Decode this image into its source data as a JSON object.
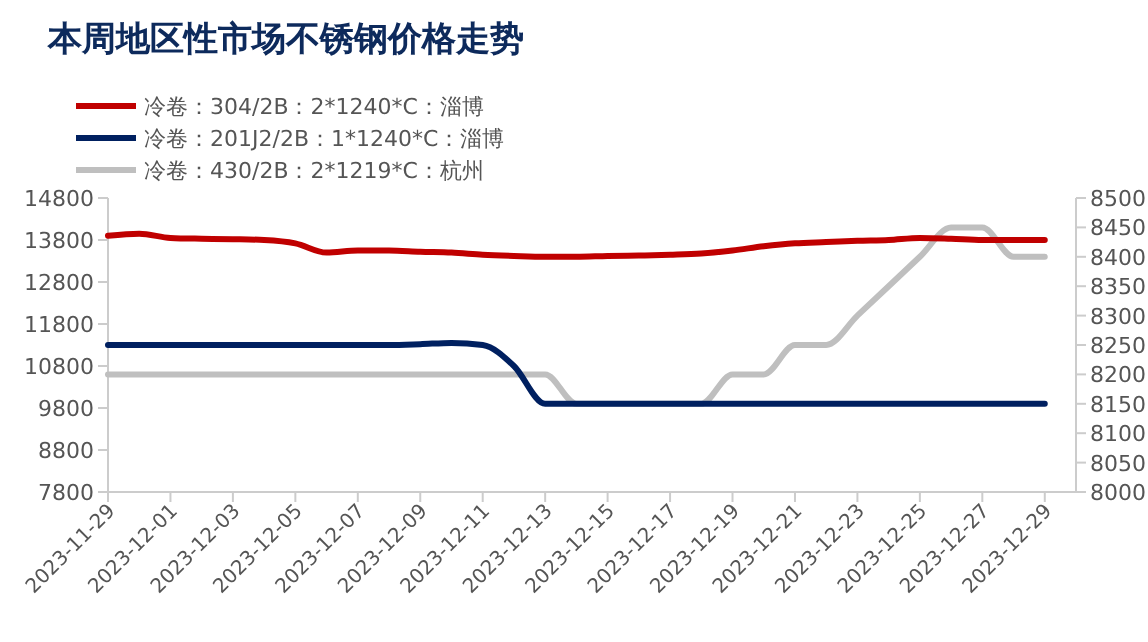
{
  "chart_data": {
    "type": "line",
    "title": "本周地区性市场不锈钢价格走势",
    "legend": "top left",
    "x": [
      "2023-11-29",
      "2023-11-30",
      "2023-12-01",
      "2023-12-02",
      "2023-12-03",
      "2023-12-04",
      "2023-12-05",
      "2023-12-06",
      "2023-12-07",
      "2023-12-08",
      "2023-12-09",
      "2023-12-10",
      "2023-12-11",
      "2023-12-12",
      "2023-12-13",
      "2023-12-14",
      "2023-12-15",
      "2023-12-16",
      "2023-12-17",
      "2023-12-18",
      "2023-12-19",
      "2023-12-20",
      "2023-12-21",
      "2023-12-22",
      "2023-12-23",
      "2023-12-24",
      "2023-12-25",
      "2023-12-26",
      "2023-12-27",
      "2023-12-28",
      "2023-12-29"
    ],
    "series": [
      {
        "name": "冷卷：304/2B：2*1240*C：淄博",
        "color": "#c00000",
        "values": [
          13900,
          13950,
          13850,
          13830,
          13820,
          13800,
          13720,
          13500,
          13550,
          13550,
          13520,
          13500,
          13450,
          13420,
          13400,
          13400,
          13420,
          13430,
          13450,
          13480,
          13550,
          13650,
          13720,
          13750,
          13780,
          13800,
          13850,
          13830,
          13800,
          13800,
          13800
        ]
      },
      {
        "name": "冷卷：201J2/2B：1*1240*C：淄博",
        "color": "#002060",
        "values": [
          11300,
          11300,
          11300,
          11300,
          11300,
          11300,
          11300,
          11300,
          11300,
          11300,
          11320,
          11350,
          11300,
          10800,
          9900,
          9900,
          9900,
          9900,
          9900,
          9900,
          9900,
          9900,
          9900,
          9900,
          9900,
          9900,
          9900,
          9900,
          9900,
          9900,
          9900
        ]
      },
      {
        "name": "冷卷：430/2B：2*1219*C：杭州",
        "color": "#bfbfbf",
        "axis": "y2",
        "values": [
          8200,
          8200,
          8200,
          8200,
          8200,
          8200,
          8200,
          8200,
          8200,
          8200,
          8200,
          8200,
          8200,
          8200,
          8200,
          8150,
          8150,
          8150,
          8150,
          8150,
          8200,
          8200,
          8250,
          8250,
          8300,
          8350,
          8400,
          8450,
          8450,
          8400,
          8400
        ]
      }
    ],
    "xlim": [
      "2023-11-29",
      "2023-12-30"
    ],
    "xticks": [
      "2023-11-29",
      "2023-12-01",
      "2023-12-03",
      "2023-12-05",
      "2023-12-07",
      "2023-12-09",
      "2023-12-11",
      "2023-12-13",
      "2023-12-15",
      "2023-12-17",
      "2023-12-19",
      "2023-12-21",
      "2023-12-23",
      "2023-12-25",
      "2023-12-27",
      "2023-12-29"
    ],
    "ylim": [
      7800,
      14800
    ],
    "yticks": [
      7800,
      8800,
      9800,
      10800,
      11800,
      12800,
      13800,
      14800
    ],
    "y2lim": [
      8000,
      8500
    ],
    "y2ticks": [
      8000,
      8050,
      8100,
      8150,
      8200,
      8250,
      8300,
      8350,
      8400,
      8450,
      8500
    ]
  }
}
